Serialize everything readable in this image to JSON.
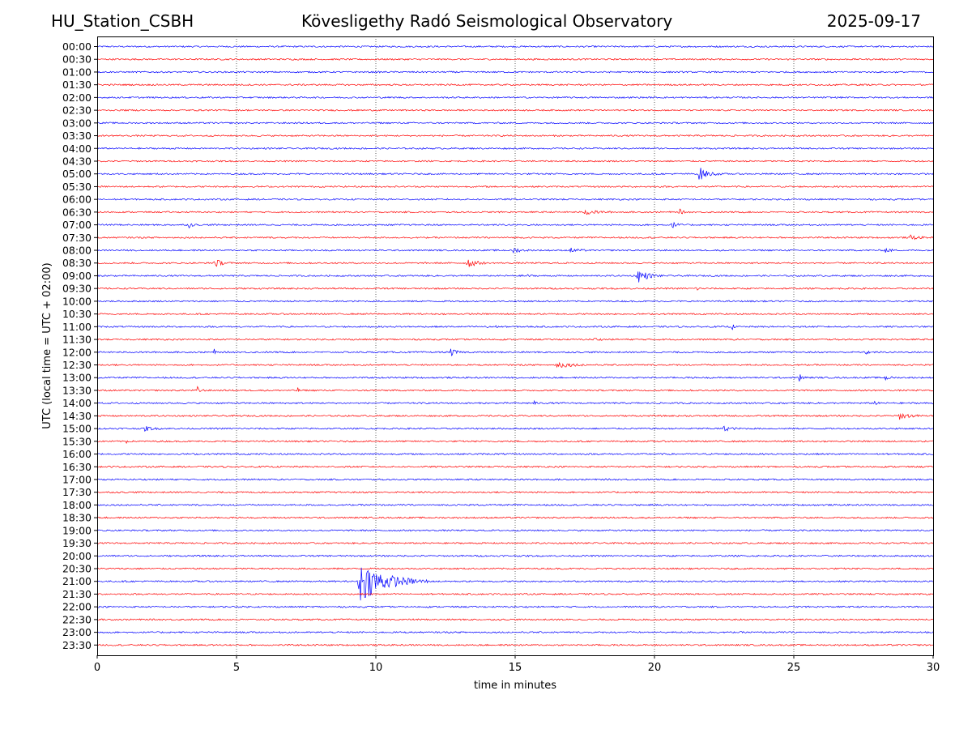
{
  "header": {
    "station": "HU_Station_CSBH",
    "title": "Kövesligethy Radó Seismological Observatory",
    "date": "2025-09-17"
  },
  "chart_data": {
    "type": "line",
    "title": "Kövesligethy Radó Seismological Observatory",
    "xlabel": "time in minutes",
    "ylabel": "UTC (local time = UTC + 02:00)",
    "xlim": [
      0,
      30
    ],
    "xticks": [
      "0",
      "5",
      "10",
      "15",
      "20",
      "25",
      "30"
    ],
    "xtick_values": [
      0,
      5,
      10,
      15,
      20,
      25,
      30
    ],
    "grid": "vertical dotted at x ticks",
    "colors": {
      "even_rows": "#0000ff",
      "odd_rows": "#ff0000",
      "axis": "#000000"
    },
    "rows": [
      "00:00",
      "00:30",
      "01:00",
      "01:30",
      "02:00",
      "02:30",
      "03:00",
      "03:30",
      "04:00",
      "04:30",
      "05:00",
      "05:30",
      "06:00",
      "06:30",
      "07:00",
      "07:30",
      "08:00",
      "08:30",
      "09:00",
      "09:30",
      "10:00",
      "10:30",
      "11:00",
      "11:30",
      "12:00",
      "12:30",
      "13:00",
      "13:30",
      "14:00",
      "14:30",
      "15:00",
      "15:30",
      "16:00",
      "16:30",
      "17:00",
      "17:30",
      "18:00",
      "18:30",
      "19:00",
      "19:30",
      "20:00",
      "20:30",
      "21:00",
      "21:30",
      "22:00",
      "22:30",
      "23:00",
      "23:30"
    ],
    "events": [
      {
        "row": "05:00",
        "t": 21.6,
        "amp": 0.55,
        "dur": 0.8
      },
      {
        "row": "06:30",
        "t": 17.5,
        "amp": 0.2,
        "dur": 1.0
      },
      {
        "row": "06:30",
        "t": 20.9,
        "amp": 0.2,
        "dur": 0.3
      },
      {
        "row": "07:00",
        "t": 3.3,
        "amp": 0.2,
        "dur": 0.3
      },
      {
        "row": "07:00",
        "t": 20.6,
        "amp": 0.25,
        "dur": 0.5
      },
      {
        "row": "07:30",
        "t": 29.2,
        "amp": 0.2,
        "dur": 0.6
      },
      {
        "row": "08:00",
        "t": 14.9,
        "amp": 0.25,
        "dur": 0.6
      },
      {
        "row": "08:00",
        "t": 17.0,
        "amp": 0.2,
        "dur": 0.6
      },
      {
        "row": "08:00",
        "t": 28.3,
        "amp": 0.2,
        "dur": 0.4
      },
      {
        "row": "08:30",
        "t": 4.2,
        "amp": 0.35,
        "dur": 0.6
      },
      {
        "row": "08:30",
        "t": 13.3,
        "amp": 0.4,
        "dur": 0.7
      },
      {
        "row": "09:00",
        "t": 19.4,
        "amp": 0.55,
        "dur": 0.9
      },
      {
        "row": "09:00",
        "t": 15.3,
        "amp": 0.2,
        "dur": 0.4
      },
      {
        "row": "09:30",
        "t": 21.5,
        "amp": 0.2,
        "dur": 0.2
      },
      {
        "row": "11:00",
        "t": 14.0,
        "amp": 0.25,
        "dur": 0.5
      },
      {
        "row": "11:00",
        "t": 22.8,
        "amp": 0.25,
        "dur": 0.1
      },
      {
        "row": "11:30",
        "t": 17.8,
        "amp": 0.2,
        "dur": 0.3
      },
      {
        "row": "12:00",
        "t": 12.7,
        "amp": 0.25,
        "dur": 0.5
      },
      {
        "row": "12:00",
        "t": 4.2,
        "amp": 0.2,
        "dur": 0.1
      },
      {
        "row": "12:00",
        "t": 27.6,
        "amp": 0.2,
        "dur": 0.2
      },
      {
        "row": "12:30",
        "t": 16.5,
        "amp": 0.25,
        "dur": 1.2
      },
      {
        "row": "13:00",
        "t": 25.2,
        "amp": 0.3,
        "dur": 0.3
      },
      {
        "row": "13:00",
        "t": 28.3,
        "amp": 0.25,
        "dur": 0.3
      },
      {
        "row": "13:30",
        "t": 3.6,
        "amp": 0.25,
        "dur": 0.3
      },
      {
        "row": "13:30",
        "t": 7.2,
        "amp": 0.2,
        "dur": 0.1
      },
      {
        "row": "14:00",
        "t": 15.7,
        "amp": 0.25,
        "dur": 0.1
      },
      {
        "row": "14:00",
        "t": 27.9,
        "amp": 0.2,
        "dur": 0.2
      },
      {
        "row": "14:30",
        "t": 28.8,
        "amp": 0.25,
        "dur": 0.9
      },
      {
        "row": "15:00",
        "t": 1.7,
        "amp": 0.2,
        "dur": 0.6
      },
      {
        "row": "15:00",
        "t": 22.5,
        "amp": 0.2,
        "dur": 0.6
      },
      {
        "row": "15:30",
        "t": 1.0,
        "amp": 0.25,
        "dur": 0.2
      },
      {
        "row": "21:00",
        "t": 9.4,
        "amp": 1.7,
        "dur": 2.5
      }
    ]
  }
}
